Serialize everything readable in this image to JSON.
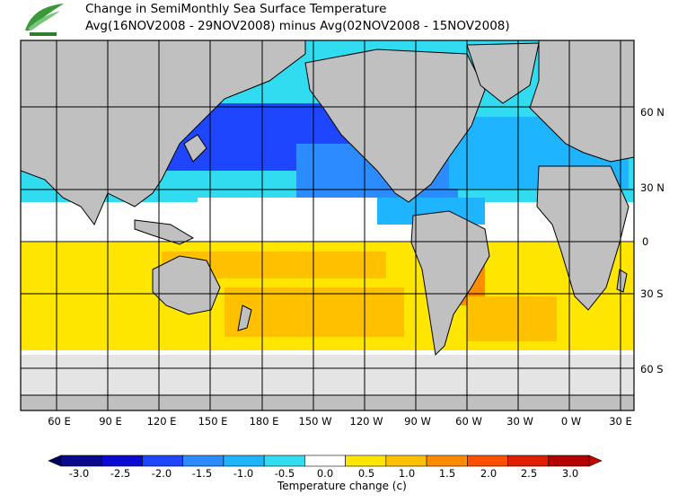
{
  "title_line1": "Change in SemiMonthly Sea Surface Temperature",
  "title_line2": "Avg(16NOV2008 - 29NOV2008) minus Avg(02NOV2008 - 15NOV2008)",
  "logo_icon": "leaf-logo-icon",
  "lon_ticks": [
    "60 E",
    "90 E",
    "120 E",
    "150 E",
    "180 E",
    "150 W",
    "120 W",
    "90 W",
    "60 W",
    "30 W",
    "0 W",
    "30 E"
  ],
  "lat_ticks": [
    "60 N",
    "30 N",
    "0",
    "30 S",
    "60 S"
  ],
  "colorbar": {
    "title": "Temperature change  (c)",
    "labels": [
      "-3.0",
      "-2.5",
      "-2.0",
      "-1.5",
      "-1.0",
      "-0.5",
      "0.0",
      "0.5",
      "1.0",
      "1.5",
      "2.0",
      "2.5",
      "3.0"
    ],
    "colors": [
      "#0a0a8c",
      "#0a0ad2",
      "#1e46ff",
      "#2c8cff",
      "#1eb4ff",
      "#32dcf0",
      "#ffffff",
      "#ffe600",
      "#ffc000",
      "#ff8c00",
      "#ff5000",
      "#e01e00",
      "#b40000"
    ],
    "under_color": "#000064",
    "over_color": "#c80000"
  },
  "land_color": "#c0c0c0",
  "ice_color": "#e4e4e4"
}
